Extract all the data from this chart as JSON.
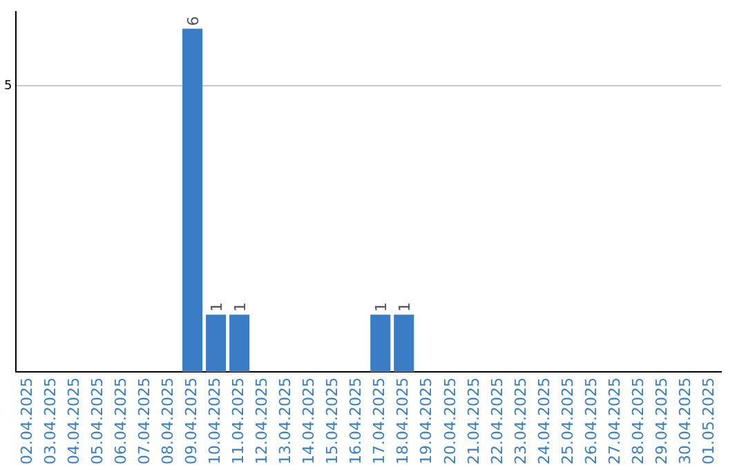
{
  "chart_data": {
    "type": "bar",
    "categories": [
      "02.04.2025",
      "03.04.2025",
      "04.04.2025",
      "05.04.2025",
      "06.04.2025",
      "07.04.2025",
      "08.04.2025",
      "09.04.2025",
      "10.04.2025",
      "11.04.2025",
      "12.04.2025",
      "13.04.2025",
      "14.04.2025",
      "15.04.2025",
      "16.04.2025",
      "17.04.2025",
      "18.04.2025",
      "19.04.2025",
      "20.04.2025",
      "21.04.2025",
      "22.04.2025",
      "23.04.2025",
      "24.04.2025",
      "25.04.2025",
      "26.04.2025",
      "27.04.2025",
      "28.04.2025",
      "29.04.2025",
      "30.04.2025",
      "01.05.2025"
    ],
    "values": [
      0,
      0,
      0,
      0,
      0,
      0,
      0,
      6,
      1,
      1,
      0,
      0,
      0,
      0,
      0,
      1,
      1,
      0,
      0,
      0,
      0,
      0,
      0,
      0,
      0,
      0,
      0,
      0,
      0,
      0
    ],
    "color": "#3b7dc4",
    "value_labels": [
      null,
      null,
      null,
      null,
      null,
      null,
      null,
      "6",
      "1",
      "1",
      null,
      null,
      null,
      null,
      null,
      "1",
      "1",
      null,
      null,
      null,
      null,
      null,
      null,
      null,
      null,
      null,
      null,
      null,
      null,
      null
    ],
    "ylim": [
      0,
      6.3
    ],
    "yticks": [
      5
    ],
    "grid": "y",
    "legend": false
  }
}
